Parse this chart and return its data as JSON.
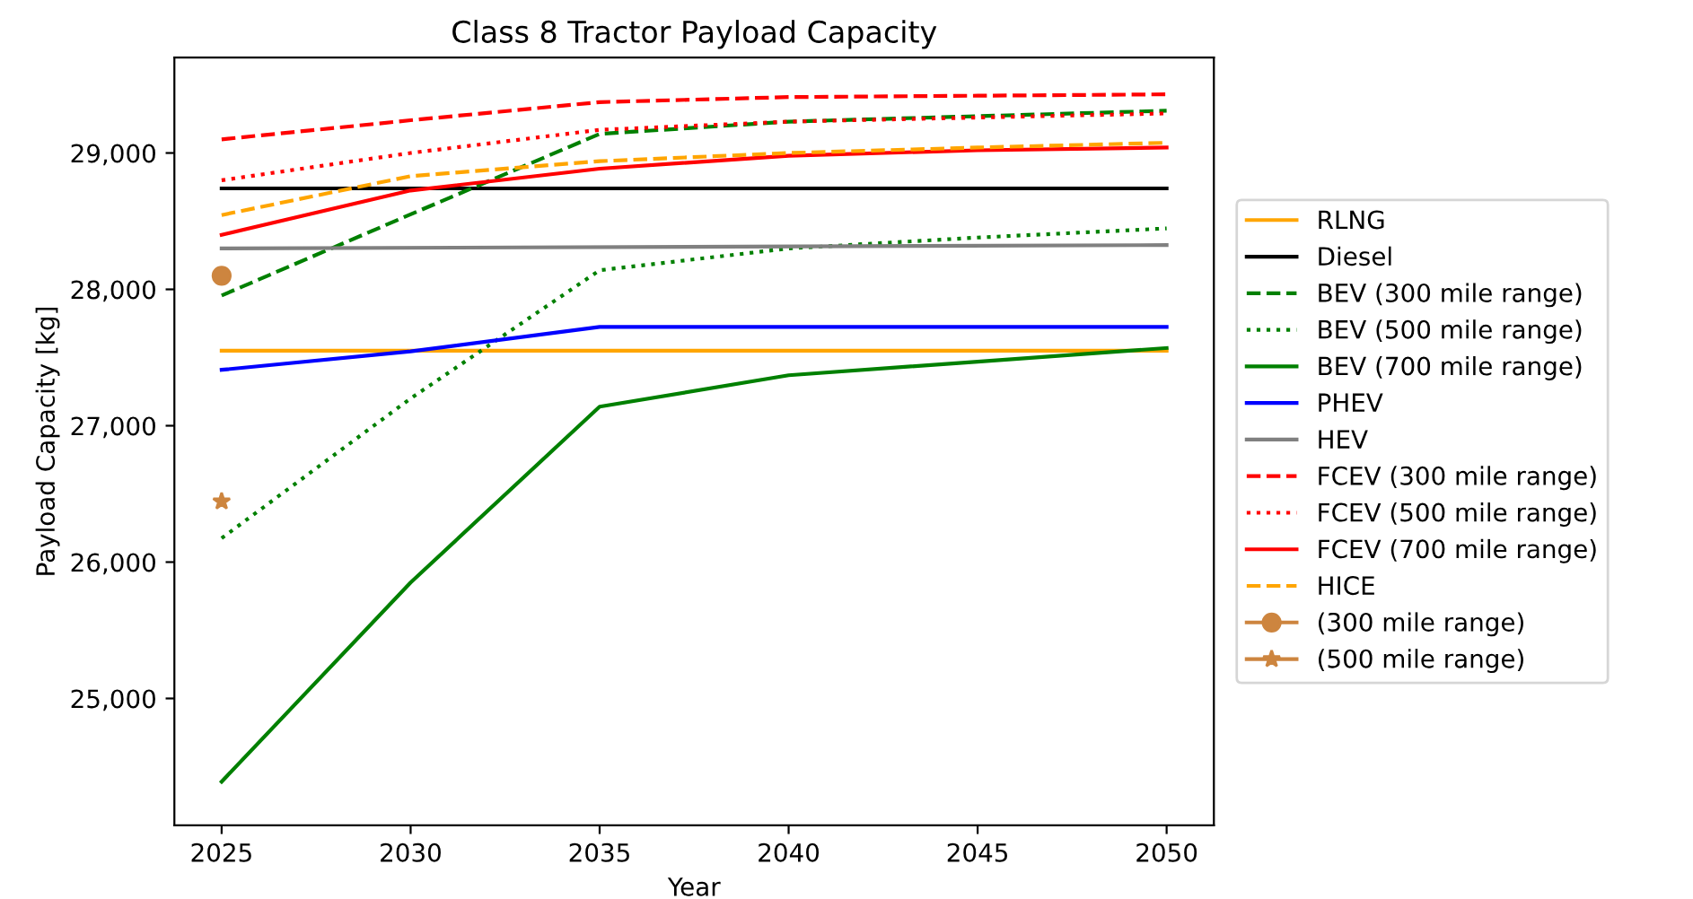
{
  "chart_data": {
    "type": "line",
    "title": "Class 8 Tractor Payload Capacity",
    "xlabel": "Year",
    "ylabel": "Payload Capacity [kg]",
    "xlim": [
      2023.75,
      2051.25
    ],
    "xticks": [
      2025,
      2030,
      2035,
      2040,
      2045,
      2050
    ],
    "ylim": [
      24070,
      29700
    ],
    "yticks": [
      {
        "value": 25000,
        "label": "25,000"
      },
      {
        "value": 26000,
        "label": "26,000"
      },
      {
        "value": 27000,
        "label": "27,000"
      },
      {
        "value": 28000,
        "label": "28,000"
      },
      {
        "value": 29000,
        "label": "29,000"
      }
    ],
    "grid": false,
    "legend": "right",
    "marker": "none",
    "series": [
      {
        "name": "RLNG",
        "color": "#ffa500",
        "line_style": "solid",
        "x": [
          2025,
          2050
        ],
        "values": [
          27550,
          27550
        ]
      },
      {
        "name": "Diesel",
        "color": "#000000",
        "line_style": "solid",
        "x": [
          2025,
          2050
        ],
        "values": [
          28740,
          28740
        ]
      },
      {
        "name": "BEV (300 mile range)",
        "color": "#008000",
        "line_style": "dashed",
        "x": [
          2025,
          2030,
          2035,
          2040,
          2045,
          2050
        ],
        "values": [
          27955,
          28550,
          29140,
          29230,
          29270,
          29310
        ]
      },
      {
        "name": "BEV (500 mile range)",
        "color": "#008000",
        "line_style": "dotted",
        "x": [
          2025,
          2030,
          2035,
          2040,
          2045,
          2050
        ],
        "values": [
          26175,
          27200,
          28140,
          28300,
          28380,
          28447
        ]
      },
      {
        "name": "BEV (700 mile range)",
        "color": "#008000",
        "line_style": "solid",
        "x": [
          2025,
          2030,
          2035,
          2040,
          2045,
          2050
        ],
        "values": [
          24390,
          25850,
          27140,
          27370,
          27470,
          27570
        ]
      },
      {
        "name": "PHEV",
        "color": "#0000ff",
        "line_style": "solid",
        "x": [
          2025,
          2030,
          2035,
          2040,
          2045,
          2050
        ],
        "values": [
          27410,
          27545,
          27725,
          27725,
          27725,
          27725
        ]
      },
      {
        "name": "HEV",
        "color": "#808080",
        "line_style": "solid",
        "x": [
          2025,
          2050
        ],
        "values": [
          28300,
          28325
        ]
      },
      {
        "name": "FCEV (300 mile range)",
        "color": "#ff0000",
        "line_style": "dashed",
        "x": [
          2025,
          2030,
          2035,
          2040,
          2045,
          2050
        ],
        "values": [
          29100,
          29240,
          29373,
          29410,
          29420,
          29430
        ]
      },
      {
        "name": "FCEV (500 mile range)",
        "color": "#ff0000",
        "line_style": "dotted",
        "x": [
          2025,
          2030,
          2035,
          2040,
          2045,
          2050
        ],
        "values": [
          28800,
          29000,
          29170,
          29230,
          29260,
          29290
        ]
      },
      {
        "name": "FCEV (700 mile range)",
        "color": "#ff0000",
        "line_style": "solid",
        "x": [
          2025,
          2030,
          2035,
          2040,
          2045,
          2050
        ],
        "values": [
          28400,
          28725,
          28885,
          28980,
          29020,
          29040
        ]
      },
      {
        "name": "HICE",
        "color": "#ffa500",
        "line_style": "dashed",
        "x": [
          2025,
          2030,
          2035,
          2040,
          2045,
          2050
        ],
        "values": [
          28545,
          28830,
          28940,
          29000,
          29040,
          29075
        ]
      },
      {
        "name": "(300 mile range)",
        "color": "#cd853f",
        "line_style": "solid",
        "marker": "circle",
        "x": [
          2025
        ],
        "values": [
          28100
        ]
      },
      {
        "name": "(500 mile range)",
        "color": "#cd853f",
        "line_style": "solid",
        "marker": "star",
        "x": [
          2025
        ],
        "values": [
          26445
        ]
      }
    ]
  }
}
